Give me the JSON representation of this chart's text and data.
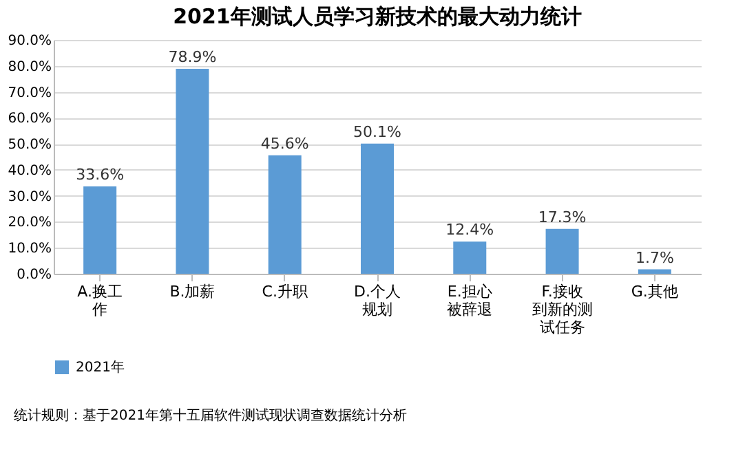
{
  "chart_data": {
    "type": "bar",
    "title": "2021年测试人员学习新技术的最大动力统计",
    "categories": [
      "A.换工作",
      "B.加薪",
      "C.升职",
      "D.个人规划",
      "E.担心被辞退",
      "F.接收到新的测试任务",
      "G.其他"
    ],
    "series": [
      {
        "name": "2021年",
        "color": "#5b9bd5",
        "values": [
          33.6,
          78.9,
          45.6,
          50.1,
          12.4,
          17.3,
          1.7
        ],
        "value_labels": [
          "33.6%",
          "78.9%",
          "45.6%",
          "50.1%",
          "12.4%",
          "17.3%",
          "1.7%"
        ]
      }
    ],
    "ylim": [
      0,
      90
    ],
    "yticks": [
      {
        "value": 0,
        "label": "0.0%"
      },
      {
        "value": 10,
        "label": "10.0%"
      },
      {
        "value": 20,
        "label": "20.0%"
      },
      {
        "value": 30,
        "label": "30.0%"
      },
      {
        "value": 40,
        "label": "40.0%"
      },
      {
        "value": 50,
        "label": "50.0%"
      },
      {
        "value": 60,
        "label": "60.0%"
      },
      {
        "value": 70,
        "label": "70.0%"
      },
      {
        "value": 80,
        "label": "80.0%"
      },
      {
        "value": 90,
        "label": "90.0%"
      }
    ],
    "grid": "y",
    "legend": "bottom",
    "annotations": [
      "统计规则：基于2021年第十五届软件测试现状调查数据统计分析"
    ]
  }
}
